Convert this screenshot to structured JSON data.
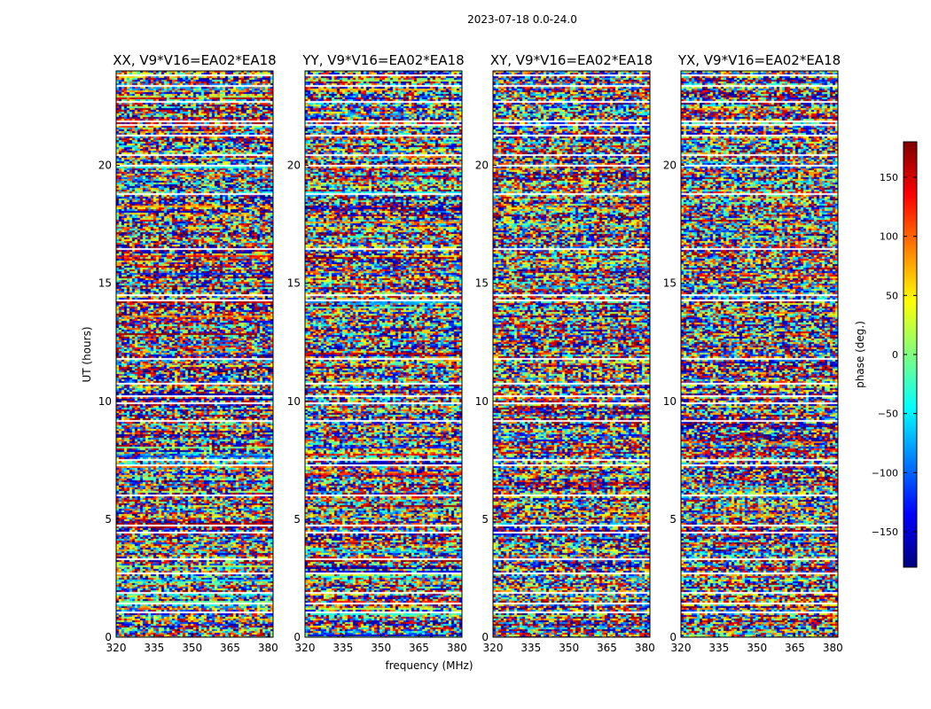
{
  "figure": {
    "suptitle": "2023-07-18 0.0-24.0",
    "xlabel": "frequency (MHz)",
    "ylabel": "UT (hours)"
  },
  "colorbar": {
    "label": "phase (deg.)",
    "range": [
      -180,
      180
    ],
    "ticks": [
      150,
      100,
      50,
      0,
      -50,
      -100,
      -150
    ],
    "tick_labels": [
      "150",
      "100",
      "50",
      "0",
      "−50",
      "−100",
      "−150"
    ],
    "colormap": "jet",
    "colors": [
      "#00007f",
      "#0000ff",
      "#007fff",
      "#00ffff",
      "#7fff7f",
      "#ffff00",
      "#ff7f00",
      "#ff0000",
      "#7f0000"
    ]
  },
  "chart_data": [
    {
      "type": "heatmap",
      "title": "XX, V9*V16=EA02*EA18",
      "xlabel": "",
      "ylabel": "UT (hours)",
      "xlim": [
        320,
        382
      ],
      "ylim": [
        0,
        24
      ],
      "xticks": [
        "320",
        "335",
        "350",
        "365",
        "380"
      ],
      "yticks": [
        "0",
        "5",
        "10",
        "15",
        "20"
      ],
      "value": "phase (deg.)",
      "value_range": [
        -180,
        180
      ]
    },
    {
      "type": "heatmap",
      "title": "YY, V9*V16=EA02*EA18",
      "xlabel": "frequency (MHz)",
      "ylabel": "",
      "xlim": [
        320,
        382
      ],
      "ylim": [
        0,
        24
      ],
      "xticks": [
        "320",
        "335",
        "350",
        "365",
        "380"
      ],
      "yticks": [
        "0",
        "5",
        "10",
        "15",
        "20"
      ],
      "value": "phase (deg.)",
      "value_range": [
        -180,
        180
      ]
    },
    {
      "type": "heatmap",
      "title": "XY, V9*V16=EA02*EA18",
      "xlabel": "",
      "ylabel": "",
      "xlim": [
        320,
        382
      ],
      "ylim": [
        0,
        24
      ],
      "xticks": [
        "320",
        "335",
        "350",
        "365",
        "380"
      ],
      "yticks": [
        "0",
        "5",
        "10",
        "15",
        "20"
      ],
      "value": "phase (deg.)",
      "value_range": [
        -180,
        180
      ]
    },
    {
      "type": "heatmap",
      "title": "YX, V9*V16=EA02*EA18",
      "xlabel": "",
      "ylabel": "",
      "xlim": [
        320,
        382
      ],
      "ylim": [
        0,
        24
      ],
      "xticks": [
        "320",
        "335",
        "350",
        "365",
        "380"
      ],
      "yticks": [
        "0",
        "5",
        "10",
        "15",
        "20"
      ],
      "value": "phase (deg.)",
      "value_range": [
        -180,
        180
      ]
    }
  ]
}
